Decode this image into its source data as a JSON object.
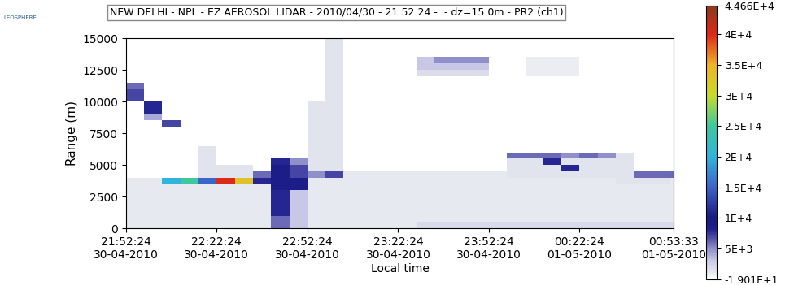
{
  "chart_data": {
    "type": "heatmap",
    "title": "NEW DELHI - NPL - EZ AEROSOL LIDAR - 2010/04/30 - 21:52:24 -  - dz=15.0m - PR2 (ch1)",
    "logo": "LEOSPHERE",
    "x_label": "Local time",
    "y_label": "Range (m)",
    "xlim": [
      0,
      181.15
    ],
    "xticks": [
      {
        "value": 0,
        "label": "21:52:24\n30-04-2010"
      },
      {
        "value": 30,
        "label": "22:22:24\n30-04-2010"
      },
      {
        "value": 60,
        "label": "22:52:24\n30-04-2010"
      },
      {
        "value": 90,
        "label": "23:22:24\n30-04-2010"
      },
      {
        "value": 120,
        "label": "23:52:24\n30-04-2010"
      },
      {
        "value": 150,
        "label": "00:22:24\n01-05-2010"
      },
      {
        "value": 181.15,
        "label": "00:53:33\n01-05-2010"
      }
    ],
    "ylim": [
      0,
      15000
    ],
    "yticks": [
      0,
      2500,
      5000,
      7500,
      10000,
      12500,
      15000
    ],
    "x_edges": [
      0,
      6,
      12,
      18,
      24,
      30,
      36,
      42,
      48,
      54,
      60,
      66,
      72,
      78,
      84,
      90,
      96,
      102,
      108,
      114,
      120,
      126,
      132,
      138,
      144,
      150,
      156,
      162,
      168,
      174,
      180,
      181.15
    ],
    "y_edges": [
      0,
      500,
      1000,
      1500,
      2000,
      2500,
      3000,
      3500,
      4000,
      4500,
      5000,
      5500,
      6000,
      6500,
      7000,
      7500,
      8000,
      8500,
      9000,
      9500,
      10000,
      10500,
      11000,
      11500,
      12000,
      12500,
      13000,
      13500,
      14000,
      14500,
      15000
    ],
    "cells": [
      [
        1200,
        1200,
        1200,
        1200,
        1200,
        1200,
        1200,
        1200,
        6000,
        3000,
        1200,
        1200,
        1200,
        1200,
        1200,
        1200,
        2000,
        2000,
        2000,
        2000,
        2000,
        2000,
        2000,
        2000,
        2000,
        2000,
        2000,
        2000,
        2000,
        2000,
        2000
      ],
      [
        1200,
        1200,
        1200,
        1200,
        1200,
        1200,
        1200,
        1200,
        6000,
        3000,
        1200,
        1200,
        1200,
        1200,
        1200,
        1200,
        1200,
        1200,
        1200,
        1200,
        1200,
        1200,
        1200,
        1200,
        1200,
        1200,
        1200,
        1200,
        1200,
        1200,
        1200
      ],
      [
        1200,
        1200,
        1200,
        1200,
        1200,
        1200,
        1200,
        1200,
        8000,
        3000,
        1200,
        1200,
        1200,
        1200,
        1200,
        1200,
        1200,
        1200,
        1200,
        1200,
        1200,
        1200,
        1200,
        1200,
        1200,
        1200,
        1200,
        1200,
        1200,
        1200,
        1200
      ],
      [
        1200,
        1200,
        1200,
        1200,
        1200,
        1200,
        1200,
        1200,
        8000,
        3000,
        1200,
        1200,
        1200,
        1200,
        1200,
        1200,
        1200,
        1200,
        1200,
        1200,
        1200,
        1200,
        1200,
        1200,
        1200,
        1200,
        1200,
        1200,
        1200,
        1200,
        1200
      ],
      [
        1200,
        1200,
        1200,
        1200,
        1200,
        1200,
        1200,
        1200,
        8000,
        3000,
        1200,
        1200,
        1200,
        1200,
        1200,
        1200,
        1200,
        1200,
        1200,
        1200,
        1200,
        1200,
        1200,
        1200,
        1200,
        1200,
        1200,
        1200,
        1200,
        1200,
        1200
      ],
      [
        1200,
        1200,
        1200,
        1200,
        1200,
        1200,
        1200,
        1200,
        8000,
        3000,
        1200,
        1200,
        1200,
        1200,
        1200,
        1200,
        1200,
        1200,
        1200,
        1200,
        1200,
        1200,
        1200,
        1200,
        1200,
        1200,
        1200,
        1200,
        1200,
        1200,
        1200
      ],
      [
        1200,
        1200,
        1200,
        1200,
        1200,
        1200,
        1200,
        1200,
        9000,
        9000,
        1200,
        1200,
        1200,
        1200,
        1200,
        1200,
        1200,
        1200,
        1200,
        1200,
        1200,
        1200,
        1200,
        1200,
        1200,
        1200,
        1200,
        1200,
        1200,
        1200,
        1200
      ],
      [
        1200,
        1200,
        20000,
        25000,
        15000,
        40000,
        33000,
        8000,
        9000,
        9000,
        1200,
        1200,
        1200,
        1200,
        1200,
        1200,
        1200,
        1200,
        1200,
        1200,
        1200,
        1200,
        1200,
        1200,
        1200,
        1200,
        1200,
        1500,
        1500,
        1500,
        1200
      ],
      [
        100,
        100,
        100,
        100,
        1500,
        1500,
        1500,
        6000,
        9000,
        7000,
        5000,
        7000,
        1200,
        1200,
        1200,
        1200,
        1200,
        1200,
        1200,
        1200,
        1200,
        1500,
        1500,
        1500,
        1500,
        1500,
        1500,
        1500,
        6000,
        6000,
        6000
      ],
      [
        100,
        100,
        100,
        100,
        1500,
        1500,
        1500,
        100,
        9000,
        7000,
        1500,
        1500,
        100,
        100,
        100,
        100,
        100,
        100,
        100,
        100,
        100,
        1500,
        1500,
        1500,
        8000,
        1500,
        1500,
        1500,
        100,
        100,
        100
      ],
      [
        100,
        100,
        100,
        100,
        1500,
        100,
        100,
        100,
        8000,
        5000,
        1500,
        1500,
        100,
        100,
        100,
        100,
        100,
        100,
        100,
        100,
        100,
        1500,
        1500,
        8000,
        1500,
        1500,
        1500,
        1500,
        100,
        100,
        100
      ],
      [
        100,
        100,
        100,
        100,
        1500,
        100,
        100,
        100,
        100,
        100,
        1500,
        1500,
        100,
        100,
        100,
        100,
        100,
        100,
        100,
        100,
        100,
        6000,
        6000,
        6000,
        5000,
        6000,
        5000,
        1500,
        100,
        100,
        100
      ],
      [
        100,
        100,
        100,
        100,
        1500,
        100,
        100,
        100,
        100,
        100,
        1500,
        1500,
        100,
        100,
        100,
        100,
        100,
        100,
        100,
        100,
        100,
        100,
        100,
        100,
        100,
        100,
        100,
        100,
        100,
        100,
        100
      ],
      [
        100,
        100,
        100,
        100,
        100,
        100,
        100,
        100,
        100,
        100,
        1500,
        1500,
        100,
        100,
        100,
        100,
        100,
        100,
        100,
        100,
        100,
        100,
        100,
        100,
        100,
        100,
        100,
        100,
        100,
        100,
        100
      ],
      [
        100,
        100,
        100,
        100,
        100,
        100,
        100,
        100,
        100,
        100,
        1500,
        1500,
        100,
        100,
        100,
        100,
        100,
        100,
        100,
        100,
        100,
        100,
        100,
        100,
        100,
        100,
        100,
        100,
        100,
        100,
        100
      ],
      [
        100,
        100,
        100,
        100,
        100,
        100,
        100,
        100,
        100,
        100,
        1500,
        1500,
        100,
        100,
        100,
        100,
        100,
        100,
        100,
        100,
        100,
        100,
        100,
        100,
        100,
        100,
        100,
        100,
        100,
        100,
        100
      ],
      [
        100,
        100,
        7000,
        100,
        100,
        100,
        100,
        100,
        100,
        100,
        1500,
        1500,
        100,
        100,
        100,
        100,
        100,
        100,
        100,
        100,
        100,
        100,
        100,
        100,
        100,
        100,
        100,
        100,
        100,
        100,
        100
      ],
      [
        100,
        4000,
        100,
        100,
        100,
        100,
        100,
        100,
        100,
        100,
        1500,
        1500,
        100,
        100,
        100,
        100,
        100,
        100,
        100,
        100,
        100,
        100,
        100,
        100,
        100,
        100,
        100,
        100,
        100,
        100,
        100
      ],
      [
        100,
        8000,
        100,
        100,
        100,
        100,
        100,
        100,
        100,
        100,
        1500,
        1500,
        100,
        100,
        100,
        100,
        100,
        100,
        100,
        100,
        100,
        100,
        100,
        100,
        100,
        100,
        100,
        100,
        100,
        100,
        100
      ],
      [
        100,
        8000,
        100,
        100,
        100,
        100,
        100,
        100,
        100,
        100,
        1500,
        1500,
        100,
        100,
        100,
        100,
        100,
        100,
        100,
        100,
        100,
        100,
        100,
        100,
        100,
        100,
        100,
        100,
        100,
        100,
        100
      ],
      [
        7000,
        100,
        100,
        100,
        100,
        100,
        100,
        100,
        100,
        100,
        100,
        1500,
        100,
        100,
        100,
        100,
        100,
        100,
        100,
        100,
        100,
        100,
        100,
        100,
        100,
        100,
        100,
        100,
        100,
        100,
        100
      ],
      [
        7000,
        100,
        100,
        100,
        100,
        100,
        100,
        100,
        100,
        100,
        100,
        1500,
        100,
        100,
        100,
        100,
        100,
        100,
        100,
        100,
        100,
        100,
        100,
        100,
        100,
        100,
        100,
        100,
        100,
        100,
        100
      ],
      [
        6000,
        100,
        100,
        100,
        100,
        100,
        100,
        100,
        100,
        100,
        100,
        1500,
        100,
        100,
        100,
        100,
        100,
        100,
        100,
        100,
        100,
        100,
        100,
        100,
        100,
        100,
        100,
        100,
        100,
        100,
        100
      ],
      [
        100,
        100,
        100,
        100,
        100,
        100,
        100,
        100,
        100,
        100,
        100,
        1500,
        100,
        100,
        100,
        100,
        100,
        100,
        100,
        100,
        100,
        100,
        100,
        100,
        100,
        100,
        100,
        100,
        100,
        100,
        100
      ],
      [
        100,
        100,
        100,
        100,
        100,
        100,
        100,
        100,
        100,
        100,
        100,
        1500,
        100,
        100,
        100,
        100,
        1800,
        1800,
        1800,
        1800,
        100,
        100,
        1000,
        1000,
        1000,
        100,
        100,
        100,
        100,
        100,
        100
      ],
      [
        100,
        100,
        100,
        100,
        100,
        100,
        100,
        100,
        100,
        100,
        100,
        1500,
        100,
        100,
        100,
        100,
        3000,
        3000,
        3000,
        3000,
        100,
        100,
        1000,
        1000,
        1000,
        100,
        100,
        100,
        100,
        100,
        100
      ],
      [
        100,
        100,
        100,
        100,
        100,
        100,
        100,
        100,
        100,
        100,
        100,
        1500,
        100,
        100,
        100,
        100,
        3000,
        5000,
        5000,
        5000,
        100,
        100,
        1000,
        1000,
        1000,
        100,
        100,
        100,
        100,
        100,
        100
      ],
      [
        100,
        100,
        100,
        100,
        100,
        100,
        100,
        100,
        100,
        100,
        100,
        1500,
        100,
        100,
        100,
        100,
        100,
        100,
        100,
        100,
        100,
        100,
        100,
        100,
        100,
        100,
        100,
        100,
        100,
        100,
        100
      ],
      [
        100,
        100,
        100,
        100,
        100,
        100,
        100,
        100,
        100,
        100,
        100,
        1500,
        100,
        100,
        100,
        100,
        100,
        100,
        100,
        100,
        100,
        100,
        100,
        100,
        100,
        100,
        100,
        100,
        100,
        100,
        100
      ],
      [
        100,
        100,
        100,
        100,
        100,
        100,
        100,
        100,
        100,
        100,
        100,
        1500,
        100,
        100,
        100,
        100,
        100,
        100,
        100,
        100,
        100,
        100,
        100,
        100,
        100,
        100,
        100,
        100,
        100,
        100,
        100
      ]
    ],
    "color_range": [
      -19.01,
      44660
    ],
    "color_ticks": [
      {
        "value": 44660,
        "label": "4.466E+4"
      },
      {
        "value": 40000,
        "label": "4E+4"
      },
      {
        "value": 35000,
        "label": "3.5E+4"
      },
      {
        "value": 30000,
        "label": "3E+4"
      },
      {
        "value": 25000,
        "label": "2.5E+4"
      },
      {
        "value": 20000,
        "label": "2E+4"
      },
      {
        "value": 15000,
        "label": "1.5E+4"
      },
      {
        "value": 10000,
        "label": "1E+4"
      },
      {
        "value": 5000,
        "label": "5E+3"
      },
      {
        "value": -19.01,
        "label": "-1.901E+1"
      }
    ]
  }
}
